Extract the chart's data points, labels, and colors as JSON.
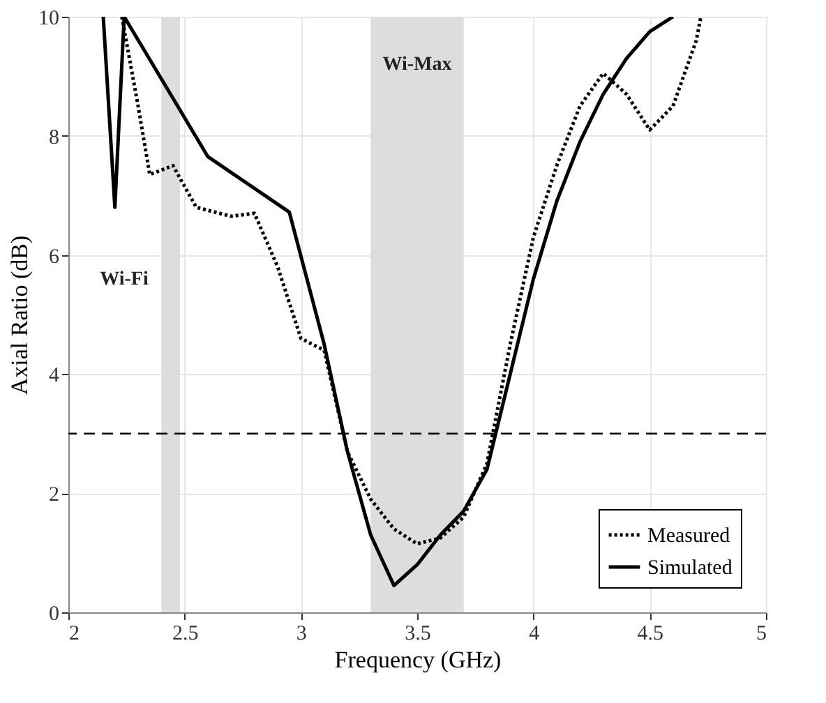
{
  "chart_data": {
    "type": "line",
    "xlabel": "Frequency (GHz)",
    "ylabel": "Axial Ratio (dB)",
    "xlim": [
      2,
      5
    ],
    "ylim": [
      0,
      10
    ],
    "xticks": [
      2,
      2.5,
      3,
      3.5,
      4,
      4.5,
      5
    ],
    "yticks": [
      0,
      2,
      4,
      6,
      8,
      10
    ],
    "grid": true,
    "legend": "bottom right",
    "series": [
      {
        "name": "Measured",
        "color": "#000000",
        "line_style": "dotted",
        "x": [
          2.23,
          2.3,
          2.35,
          2.45,
          2.55,
          2.7,
          2.8,
          2.9,
          3.0,
          3.1,
          3.2,
          3.3,
          3.4,
          3.5,
          3.6,
          3.7,
          3.8,
          3.9,
          4.0,
          4.1,
          4.2,
          4.3,
          4.4,
          4.5,
          4.6,
          4.7,
          4.72
        ],
        "values": [
          10,
          8.5,
          7.35,
          7.5,
          6.8,
          6.65,
          6.7,
          5.8,
          4.6,
          4.4,
          2.7,
          1.9,
          1.4,
          1.15,
          1.25,
          1.6,
          2.5,
          4.5,
          6.3,
          7.5,
          8.5,
          9.05,
          8.7,
          8.1,
          8.5,
          9.6,
          10
        ]
      },
      {
        "name": "Simulated",
        "color": "#000000",
        "line_style": "solid",
        "x": [
          2.15,
          2.2,
          2.24,
          2.6,
          2.95,
          3.1,
          3.2,
          3.3,
          3.4,
          3.5,
          3.6,
          3.7,
          3.8,
          3.9,
          4.0,
          4.1,
          4.2,
          4.3,
          4.4,
          4.5,
          4.6
        ],
        "values": [
          10,
          6.8,
          10,
          7.65,
          6.72,
          4.5,
          2.7,
          1.3,
          0.45,
          0.8,
          1.3,
          1.7,
          2.4,
          4.0,
          5.6,
          6.9,
          7.9,
          8.7,
          9.3,
          9.75,
          10
        ]
      }
    ],
    "ref_lines": [
      {
        "axis": "y",
        "value": 3,
        "color": "#000000",
        "line_style": "dashed"
      }
    ],
    "bands": [
      {
        "axis": "x",
        "from": 2.4,
        "to": 2.48,
        "label": "Wi-Fi",
        "color": "#dddddd"
      },
      {
        "axis": "x",
        "from": 3.3,
        "to": 3.7,
        "label": "Wi-Max",
        "color": "#dddddd"
      }
    ]
  }
}
